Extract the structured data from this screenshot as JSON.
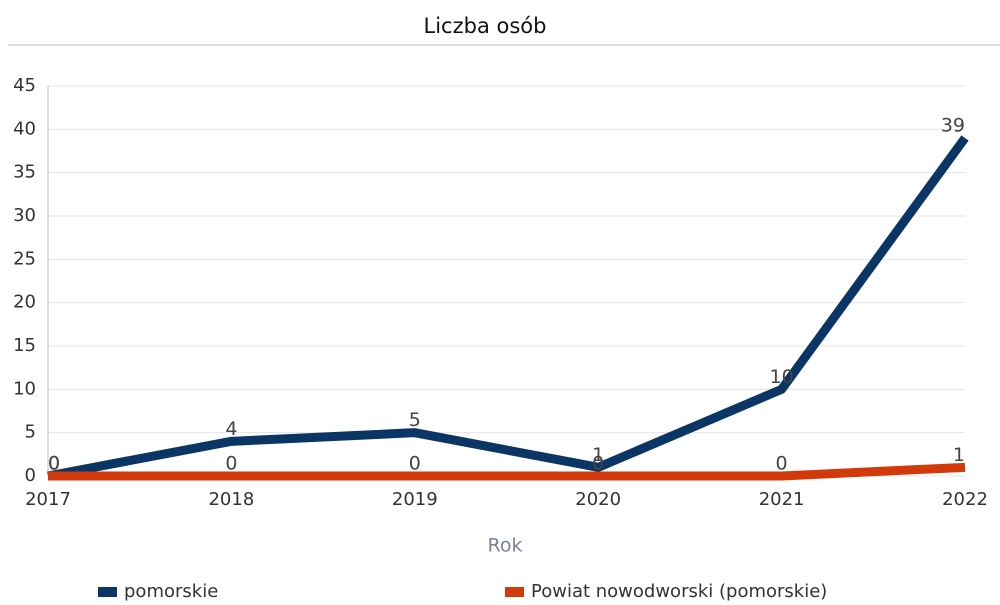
{
  "chart_data": {
    "type": "line",
    "title": "Liczba osób",
    "x_label": "Rok",
    "x": [
      2017,
      2018,
      2019,
      2020,
      2021,
      2022
    ],
    "xlim": [
      2017,
      2022
    ],
    "xticks": [
      2017,
      2018,
      2019,
      2020,
      2021,
      2022
    ],
    "ylim": [
      0,
      45
    ],
    "yticks": [
      0,
      5,
      10,
      15,
      20,
      25,
      30,
      35,
      40,
      45
    ],
    "grid": true,
    "legend": "bottom",
    "series": [
      {
        "name": "pomorskie",
        "color": "#0b3564",
        "values": [
          0,
          4,
          5,
          1,
          10,
          39
        ]
      },
      {
        "name": "Powiat nowodworski (pomorskie)",
        "color": "#d23a0c",
        "values": [
          0,
          0,
          0,
          0,
          0,
          1
        ]
      }
    ]
  }
}
